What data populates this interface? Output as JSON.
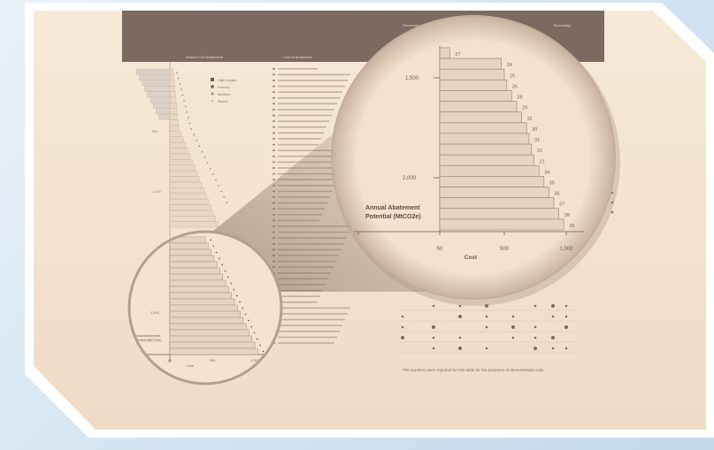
{
  "header_labels": [
    "Annual CO2 Abatement",
    "Cost of Abatement",
    "Secondary Benefits Impacts",
    "Ranking",
    "Technology",
    "Net Cost"
  ],
  "legend": [
    "High Impact",
    "Primary",
    "Medium",
    "Barrier"
  ],
  "bg_axis": {
    "y_ticks": [
      "500",
      "1,000",
      "1,500"
    ],
    "x_ticks": [
      "-100",
      "50",
      "500",
      "1,000"
    ],
    "xlabel": "Cost",
    "ylabel": "Annual Abatement Potential (MtCO2e)"
  },
  "zoom_chart": {
    "y_ticks": [
      "1,500",
      "2,000"
    ],
    "x_ticks": [
      "-100",
      "50",
      "500",
      "1,000"
    ],
    "xlabel": "Cost",
    "ylabel_line1": "Annual Abatement",
    "ylabel_line2": "Potential (MtCO2e)",
    "bar_labels": [
      "27",
      "24",
      "25",
      "26",
      "28",
      "29",
      "32",
      "30",
      "31",
      "33",
      "21",
      "34",
      "35",
      "36",
      "37",
      "38",
      "39"
    ]
  },
  "footnote": "The numbers were reported for this table for the purposes of demonstration only",
  "chart_data": {
    "type": "bar",
    "title": "",
    "xlabel": "Cost",
    "ylabel": "Annual Abatement Potential (MtCO2e)",
    "xlim": [
      -100,
      1000
    ],
    "ylim": [
      1200,
      2300
    ],
    "bars": [
      {
        "label": "27",
        "cost": 120
      },
      {
        "label": "24",
        "cost": 480
      },
      {
        "label": "25",
        "cost": 500
      },
      {
        "label": "26",
        "cost": 520
      },
      {
        "label": "28",
        "cost": 560
      },
      {
        "label": "29",
        "cost": 600
      },
      {
        "label": "32",
        "cost": 640
      },
      {
        "label": "30",
        "cost": 680
      },
      {
        "label": "31",
        "cost": 700
      },
      {
        "label": "33",
        "cost": 720
      },
      {
        "label": "21",
        "cost": 740
      },
      {
        "label": "34",
        "cost": 780
      },
      {
        "label": "35",
        "cost": 820
      },
      {
        "label": "36",
        "cost": 860
      },
      {
        "label": "37",
        "cost": 900
      },
      {
        "label": "38",
        "cost": 940
      },
      {
        "label": "39",
        "cost": 980
      }
    ]
  },
  "colors": {
    "paper": "#f5e6d3",
    "header_band": "#7c6a60",
    "bar_fill": "#e6d3c2",
    "bar_stroke": "#a28c7c",
    "frame": "#ffffff"
  }
}
